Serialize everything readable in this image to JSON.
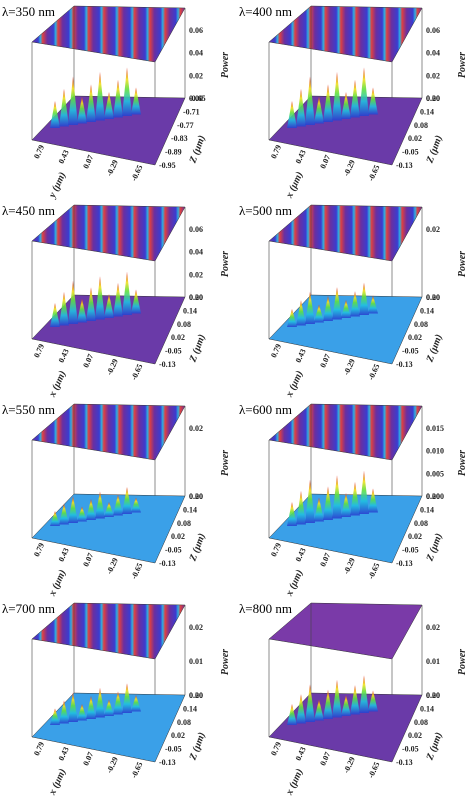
{
  "panels": [
    {
      "label": "λ=350 nm",
      "power_ticks": [
        "0.06",
        "0.04",
        "0.02",
        "0.00"
      ],
      "z_ticks": [
        "-0.65",
        "-0.71",
        "-0.77",
        "-0.83",
        "-0.89",
        "-0.95"
      ],
      "x_ticks": [
        "0.79",
        "0.43",
        "0.07",
        "-0.29",
        "-0.65"
      ],
      "power_title": "Power",
      "z_title": "Z (μm)",
      "x_title": "y (μm)"
    },
    {
      "label": "λ=400 nm",
      "power_ticks": [
        "0.06",
        "0.04",
        "0.02",
        "0.00"
      ],
      "z_ticks": [
        "0.20",
        "0.14",
        "0.08",
        "0.02",
        "-0.05",
        "-0.13"
      ],
      "x_ticks": [
        "0.79",
        "0.43",
        "0.07",
        "-0.29",
        "-0.65"
      ],
      "power_title": "Power",
      "z_title": "Z (μm)",
      "x_title": "x (μm)"
    },
    {
      "label": "λ=450 nm",
      "power_ticks": [
        "0.06",
        "0.04",
        "0.02",
        "0.00"
      ],
      "z_ticks": [
        "0.20",
        "0.14",
        "0.08",
        "0.02",
        "-0.05",
        "-0.13"
      ],
      "x_ticks": [
        "0.79",
        "0.43",
        "0.07",
        "-0.29",
        "-0.65"
      ],
      "power_title": "Power",
      "z_title": "Z (μm)",
      "x_title": "x (μm)"
    },
    {
      "label": "λ=500 nm",
      "power_ticks": [
        "0.02",
        "0.00"
      ],
      "z_ticks": [
        "0.20",
        "0.14",
        "0.08",
        "0.02",
        "-0.05",
        "-0.13"
      ],
      "x_ticks": [
        "0.79",
        "0.43",
        "0.07",
        "-0.29",
        "-0.65"
      ],
      "power_title": "Power",
      "z_title": "Z (μm)",
      "x_title": "x (μm)"
    },
    {
      "label": "λ=550 nm",
      "power_ticks": [
        "0.02",
        "0.00"
      ],
      "z_ticks": [
        "0.20",
        "0.14",
        "0.08",
        "0.02",
        "-0.05",
        "-0.13"
      ],
      "x_ticks": [
        "0.79",
        "0.43",
        "0.07",
        "-0.29",
        "-0.65"
      ],
      "power_title": "Power",
      "z_title": "Z (μm)",
      "x_title": "x (μm)"
    },
    {
      "label": "λ=600 nm",
      "power_ticks": [
        "0.015",
        "0.010",
        "0.005",
        "0.000"
      ],
      "z_ticks": [
        "0.20",
        "0.14",
        "0.08",
        "0.02",
        "-0.05",
        "-0.13"
      ],
      "x_ticks": [
        "0.79",
        "0.43",
        "0.07",
        "-0.29",
        "-0.65"
      ],
      "power_title": "Power",
      "z_title": "Z (μm)",
      "x_title": "x (μm)"
    },
    {
      "label": "λ=700 nm",
      "power_ticks": [
        "0.02",
        "0.01",
        "0.00"
      ],
      "z_ticks": [
        "0.20",
        "0.14",
        "0.08",
        "0.02",
        "-0.05",
        "-0.13"
      ],
      "x_ticks": [
        "0.79",
        "0.43",
        "0.07",
        "-0.29",
        "-0.65"
      ],
      "power_title": "Power",
      "z_title": "Z (μm)",
      "x_title": "x (μm)"
    },
    {
      "label": "λ=800 nm",
      "power_ticks": [
        "0.02",
        "0.01",
        "0.00"
      ],
      "z_ticks": [
        "0.20",
        "0.14",
        "0.08",
        "0.02",
        "-0.05",
        "-0.13"
      ],
      "x_ticks": [
        "0.79",
        "0.43",
        "0.07",
        "-0.29",
        "-0.65"
      ],
      "power_title": "Power",
      "z_title": "Z (μm)",
      "x_title": "x (μm)"
    }
  ]
}
